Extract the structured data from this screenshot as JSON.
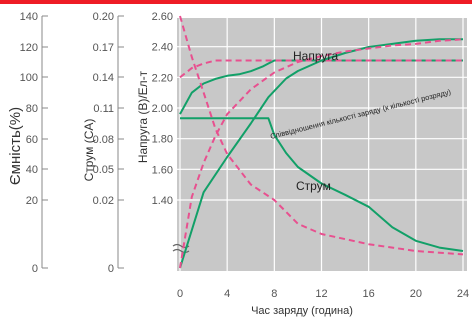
{
  "chart_data": {
    "type": "line",
    "xlabel": "Час заряду (година)",
    "x_ticks": [
      0,
      4,
      8,
      12,
      16,
      20,
      24
    ],
    "xlim": [
      0,
      24
    ],
    "axes": {
      "capacity": {
        "label": "Ємність(%)",
        "ticks": [
          0,
          20,
          40,
          60,
          80,
          100,
          120,
          140
        ],
        "tick_labels": [
          "0",
          "20",
          "40",
          "60",
          "80",
          "100",
          "120",
          "140"
        ]
      },
      "current": {
        "label": "Струм (CA)",
        "ticks": [
          0,
          0.02,
          0.05,
          0.08,
          0.11,
          0.14,
          0.17,
          0.2
        ],
        "tick_labels": [
          "0",
          "0.02",
          "0.05",
          "0.08",
          "0.11",
          "0.14",
          "0.17",
          "0.20"
        ]
      },
      "voltage": {
        "label": "Напруга (В)/Ел-т",
        "ticks": [
          1.4,
          1.6,
          1.8,
          2.0,
          2.2,
          2.4,
          2.6
        ],
        "tick_labels": [
          "1.40",
          "1.60",
          "1.80",
          "2.00",
          "2.20",
          "2.40",
          "2.60"
        ],
        "ylim": [
          1.4,
          2.6
        ]
      }
    },
    "annotations": {
      "voltage": "Напруга",
      "current": "Струм",
      "charge_ratio": "Співвідношення кількості заряду (к кількості розряду)"
    },
    "series": [
      {
        "name": "Напруга",
        "axis": "voltage",
        "style": "solid",
        "x": [
          0,
          1,
          2,
          3,
          4,
          5,
          6,
          7,
          7.5,
          8,
          24
        ],
        "y": [
          1.96,
          2.1,
          2.16,
          2.19,
          2.21,
          2.22,
          2.24,
          2.27,
          2.29,
          2.31,
          2.31
        ]
      },
      {
        "name": "Напруга",
        "axis": "voltage",
        "style": "dashed",
        "x": [
          0,
          1,
          2,
          3,
          4,
          24
        ],
        "y": [
          2.2,
          2.26,
          2.29,
          2.31,
          2.31,
          2.31
        ]
      },
      {
        "name": "Струм",
        "axis": "current",
        "style": "solid",
        "x": [
          0,
          7.5,
          8,
          9,
          10,
          12,
          14,
          16,
          18,
          20,
          22,
          24
        ],
        "y": [
          0.1,
          0.1,
          0.084,
          0.066,
          0.052,
          0.036,
          0.025,
          0.018,
          0.012,
          0.008,
          0.006,
          0.005
        ]
      },
      {
        "name": "Струм",
        "axis": "current",
        "style": "dashed",
        "x": [
          0,
          1,
          2,
          3,
          4,
          6,
          8,
          10,
          12,
          16,
          20,
          24
        ],
        "y": [
          0.2,
          0.16,
          0.125,
          0.09,
          0.065,
          0.035,
          0.02,
          0.013,
          0.01,
          0.007,
          0.005,
          0.004
        ]
      },
      {
        "name": "Співвідношення кількості заряду (к кількості розряду)",
        "axis": "capacity",
        "style": "solid",
        "x": [
          0,
          2,
          4,
          6,
          7.5,
          9,
          10,
          12,
          14,
          16,
          18,
          20,
          22,
          24
        ],
        "y": [
          0,
          25,
          48,
          70,
          87,
          99,
          104,
          111,
          116,
          120,
          122,
          124,
          125,
          125
        ]
      },
      {
        "name": "Співвідношення кількості заряду (к кількості розряду)",
        "axis": "capacity",
        "style": "dashed",
        "x": [
          0,
          1,
          2,
          3,
          4,
          6,
          8,
          10,
          12,
          14,
          16,
          18,
          20,
          22,
          24
        ],
        "y": [
          0,
          22,
          44,
          62,
          76,
          92,
          103,
          110,
          114,
          117,
          119,
          121,
          122,
          124,
          125
        ]
      }
    ]
  }
}
